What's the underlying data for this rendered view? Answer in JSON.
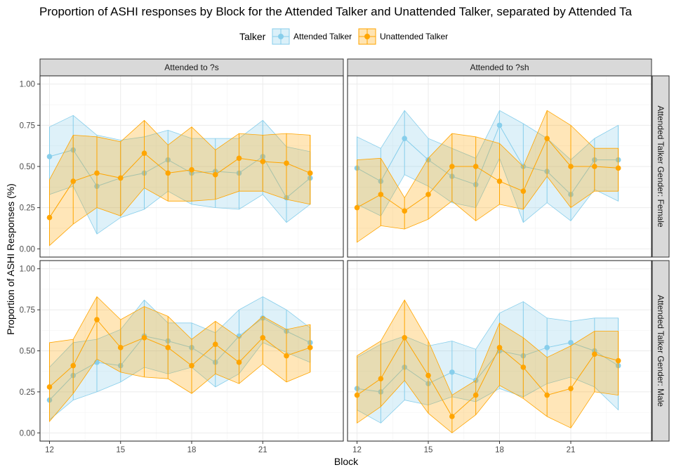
{
  "chart_data": {
    "type": "line",
    "title": "Proportion of ASHI responses by Block for the Attended Talker and Unattended Talker, separated by Attended Ta",
    "xlabel": "Block",
    "ylabel": "Proportion of ASHI Responses (%)",
    "xlim": [
      11.6,
      24.4
    ],
    "ylim": [
      -0.05,
      1.05
    ],
    "x_ticks": [
      12,
      15,
      18,
      21
    ],
    "y_ticks": [
      0.0,
      0.25,
      0.5,
      0.75,
      1.0
    ],
    "x_tick_labels": [
      "12",
      "15",
      "18",
      "21"
    ],
    "y_tick_labels": [
      "0.00",
      "0.25",
      "0.50",
      "0.75",
      "1.00"
    ],
    "grid": true,
    "legend": {
      "title": "Talker",
      "position": "top",
      "entries": [
        "Attended Talker",
        "Unattended Talker"
      ]
    },
    "column_strips": [
      "Attended to ?s",
      "Attended to ?sh"
    ],
    "row_strips": [
      "Attended Talker Gender: Female",
      "Attended Talker Gender: Male"
    ],
    "colors": {
      "Attended Talker": "#87CEEB",
      "Unattended Talker": "#FFA500",
      "strip_fill": "#d9d9d9",
      "grid": "#ebebeb"
    },
    "x": [
      12,
      13,
      14,
      15,
      16,
      17,
      18,
      19,
      20,
      21,
      22,
      23
    ],
    "panels": [
      {
        "col": 0,
        "row": 0,
        "series": [
          {
            "name": "Attended Talker",
            "values": [
              0.56,
              0.6,
              0.38,
              0.43,
              0.46,
              0.54,
              0.46,
              0.47,
              0.46,
              0.56,
              0.31,
              0.43
            ],
            "lower": [
              0.33,
              0.38,
              0.09,
              0.19,
              0.24,
              0.35,
              0.27,
              0.25,
              0.24,
              0.33,
              0.16,
              0.27
            ],
            "upper": [
              0.74,
              0.81,
              0.69,
              0.66,
              0.68,
              0.72,
              0.67,
              0.67,
              0.67,
              0.78,
              0.62,
              0.59
            ]
          },
          {
            "name": "Unattended Talker",
            "values": [
              0.19,
              0.41,
              0.46,
              0.43,
              0.58,
              0.46,
              0.48,
              0.45,
              0.55,
              0.53,
              0.52,
              0.46
            ],
            "lower": [
              0.02,
              0.15,
              0.25,
              0.2,
              0.37,
              0.29,
              0.29,
              0.3,
              0.35,
              0.35,
              0.3,
              0.27
            ],
            "upper": [
              0.42,
              0.69,
              0.68,
              0.65,
              0.78,
              0.63,
              0.74,
              0.6,
              0.7,
              0.69,
              0.7,
              0.69
            ]
          }
        ]
      },
      {
        "col": 1,
        "row": 0,
        "series": [
          {
            "name": "Attended Talker",
            "values": [
              0.49,
              0.41,
              0.67,
              0.54,
              0.44,
              0.39,
              0.75,
              0.5,
              0.47,
              0.33,
              0.54,
              0.54
            ],
            "lower": [
              0.27,
              0.2,
              0.45,
              0.38,
              0.28,
              0.25,
              0.55,
              0.16,
              0.28,
              0.17,
              0.36,
              0.29
            ],
            "upper": [
              0.68,
              0.61,
              0.84,
              0.67,
              0.61,
              0.55,
              0.84,
              0.76,
              0.67,
              0.54,
              0.67,
              0.75
            ]
          },
          {
            "name": "Unattended Talker",
            "values": [
              0.25,
              0.33,
              0.23,
              0.33,
              0.5,
              0.5,
              0.41,
              0.35,
              0.67,
              0.5,
              0.5,
              0.49
            ],
            "lower": [
              0.04,
              0.14,
              0.12,
              0.18,
              0.29,
              0.17,
              0.27,
              0.24,
              0.44,
              0.25,
              0.35,
              0.35
            ],
            "upper": [
              0.54,
              0.55,
              0.31,
              0.55,
              0.7,
              0.68,
              0.64,
              0.5,
              0.84,
              0.75,
              0.61,
              0.61
            ]
          }
        ]
      },
      {
        "col": 0,
        "row": 1,
        "series": [
          {
            "name": "Attended Talker",
            "values": [
              0.2,
              0.35,
              0.43,
              0.41,
              0.59,
              0.56,
              0.52,
              0.43,
              0.59,
              0.7,
              0.62,
              0.55
            ],
            "lower": [
              0.08,
              0.2,
              0.25,
              0.31,
              0.4,
              0.36,
              0.4,
              0.28,
              0.36,
              0.55,
              0.49,
              0.43
            ],
            "upper": [
              0.4,
              0.55,
              0.57,
              0.63,
              0.81,
              0.67,
              0.67,
              0.61,
              0.75,
              0.83,
              0.75,
              0.64
            ]
          },
          {
            "name": "Unattended Talker",
            "values": [
              0.28,
              0.41,
              0.69,
              0.52,
              0.58,
              0.52,
              0.41,
              0.54,
              0.43,
              0.58,
              0.47,
              0.52
            ],
            "lower": [
              0.07,
              0.24,
              0.45,
              0.37,
              0.34,
              0.33,
              0.24,
              0.36,
              0.3,
              0.42,
              0.31,
              0.37
            ],
            "upper": [
              0.55,
              0.57,
              0.83,
              0.69,
              0.77,
              0.71,
              0.57,
              0.68,
              0.58,
              0.71,
              0.63,
              0.66
            ]
          }
        ]
      },
      {
        "col": 1,
        "row": 1,
        "series": [
          {
            "name": "Attended Talker",
            "values": [
              0.27,
              0.25,
              0.4,
              0.3,
              0.37,
              0.32,
              0.5,
              0.47,
              0.52,
              0.55,
              0.5,
              0.41
            ],
            "lower": [
              0.14,
              0.06,
              0.2,
              0.17,
              0.22,
              0.19,
              0.27,
              0.22,
              0.3,
              0.34,
              0.28,
              0.14
            ],
            "upper": [
              0.46,
              0.54,
              0.59,
              0.53,
              0.56,
              0.51,
              0.73,
              0.8,
              0.7,
              0.68,
              0.7,
              0.7
            ]
          },
          {
            "name": "Unattended Talker",
            "values": [
              0.23,
              0.33,
              0.58,
              0.35,
              0.1,
              0.23,
              0.52,
              0.4,
              0.23,
              0.27,
              0.48,
              0.44
            ],
            "lower": [
              0.06,
              0.16,
              0.32,
              0.12,
              0.0,
              0.11,
              0.29,
              0.21,
              0.1,
              0.03,
              0.25,
              0.23
            ],
            "upper": [
              0.47,
              0.56,
              0.81,
              0.56,
              0.23,
              0.32,
              0.67,
              0.58,
              0.46,
              0.53,
              0.62,
              0.62
            ]
          }
        ]
      }
    ]
  }
}
